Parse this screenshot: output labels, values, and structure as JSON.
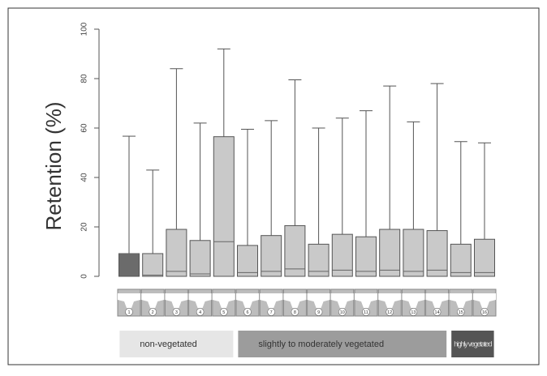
{
  "chart_data": {
    "type": "box",
    "y_label": "Retention (%)",
    "categories": [
      "1",
      "2",
      "3",
      "4",
      "5",
      "6",
      "7",
      "8",
      "9",
      "10",
      "11",
      "12",
      "13",
      "14",
      "15",
      "16"
    ],
    "series": [
      {
        "name": "upper",
        "values": [
          9.2,
          9.2,
          19,
          14.5,
          56.5,
          12.5,
          16.5,
          20.5,
          13,
          17,
          16,
          19,
          19,
          18.5,
          13,
          15
        ]
      },
      {
        "name": "median",
        "values": [
          9.2,
          0.5,
          2,
          1,
          14,
          1.5,
          2,
          3,
          2,
          2.5,
          2,
          2.5,
          2,
          2.5,
          1.5,
          1.5
        ]
      },
      {
        "name": "max",
        "values": [
          56.7,
          43,
          84,
          62,
          92,
          59.5,
          63,
          79.5,
          60,
          64,
          67,
          77,
          62.5,
          78,
          54.5,
          54
        ]
      }
    ],
    "box_colors": [
      "#6b6b6b",
      "#c9c9c9",
      "#c9c9c9",
      "#c9c9c9",
      "#c9c9c9",
      "#c9c9c9",
      "#c9c9c9",
      "#c9c9c9",
      "#c9c9c9",
      "#c9c9c9",
      "#c9c9c9",
      "#c9c9c9",
      "#c9c9c9",
      "#c9c9c9",
      "#c9c9c9",
      "#c9c9c9"
    ],
    "ylim": [
      0,
      100
    ],
    "yticks": [
      0,
      20,
      40,
      60,
      80,
      100
    ],
    "groups": [
      {
        "label": "non-vegetated",
        "from": 1,
        "to": 5,
        "color": "#e6e6e6"
      },
      {
        "label": "slightly to moderately vegetated",
        "from": 6,
        "to": 14,
        "color": "#9c9c9c"
      },
      {
        "label": "highly vegetated",
        "from": 15,
        "to": 16,
        "color": "#555555"
      }
    ]
  }
}
